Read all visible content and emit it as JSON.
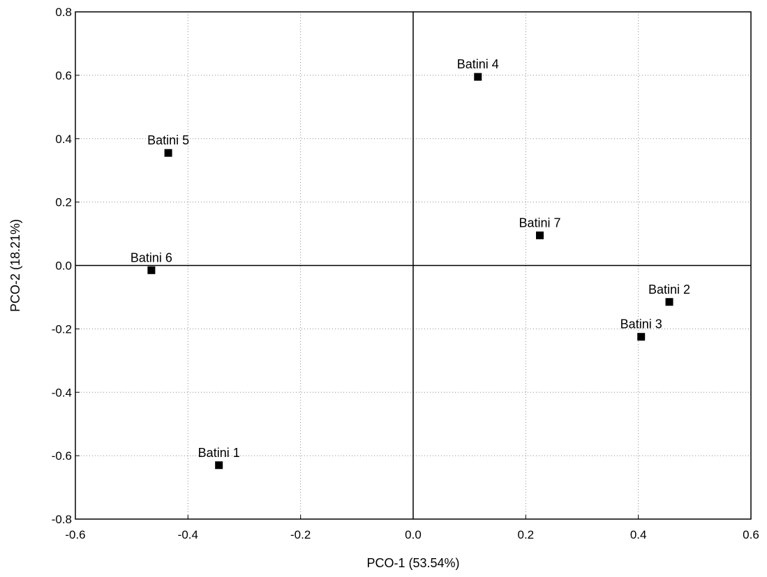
{
  "chart_data": {
    "type": "scatter",
    "xlabel": "PCO-1 (53.54%)",
    "ylabel": "PCO-2 (18.21%)",
    "xlim": [
      -0.6,
      0.6
    ],
    "ylim": [
      -0.8,
      0.8
    ],
    "xticks": [
      -0.6,
      -0.4,
      -0.2,
      0.0,
      0.2,
      0.4,
      0.6
    ],
    "yticks": [
      -0.8,
      -0.6,
      -0.4,
      -0.2,
      0.0,
      0.2,
      0.4,
      0.6,
      0.8
    ],
    "xtick_labels": [
      "-0.6",
      "-0.4",
      "-0.2",
      "0.0",
      "0.2",
      "0.4",
      "0.6"
    ],
    "ytick_labels": [
      "-0.8",
      "-0.6",
      "-0.4",
      "-0.2",
      "0.0",
      "0.2",
      "0.4",
      "0.6",
      "0.8"
    ],
    "grid": true,
    "zero_lines": true,
    "marker": "square",
    "marker_color": "#000000",
    "points": [
      {
        "label": "Batini 1",
        "x": -0.345,
        "y": -0.63
      },
      {
        "label": "Batini 2",
        "x": 0.455,
        "y": -0.115
      },
      {
        "label": "Batini 3",
        "x": 0.405,
        "y": -0.225
      },
      {
        "label": "Batini 4",
        "x": 0.115,
        "y": 0.595
      },
      {
        "label": "Batini 5",
        "x": -0.435,
        "y": 0.355
      },
      {
        "label": "Batini 6",
        "x": -0.465,
        "y": -0.015
      },
      {
        "label": "Batini 7",
        "x": 0.225,
        "y": 0.095
      }
    ]
  }
}
